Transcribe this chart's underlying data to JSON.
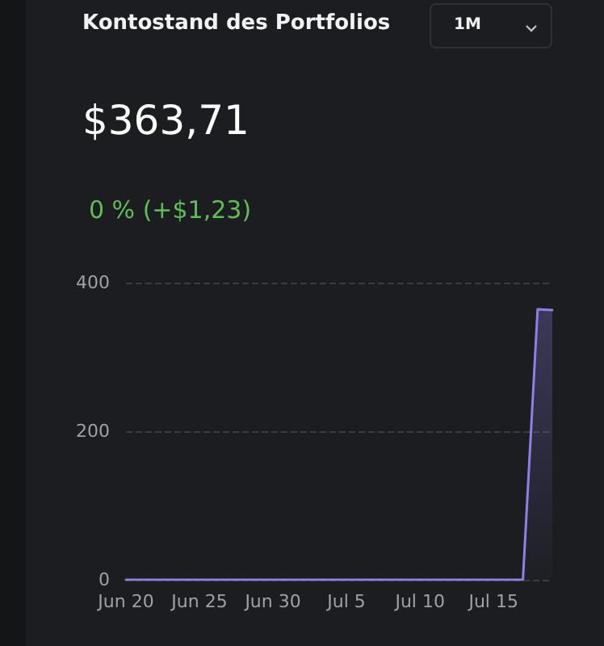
{
  "chart_data": {
    "type": "area",
    "title": "Kontostand des Portfolios",
    "subtitle": "$363,71",
    "annotations": [
      "0 % (+$1,23)",
      "1M"
    ],
    "x": [
      "--06-20",
      "--07-17",
      "--07-18",
      "--07-19"
    ],
    "series": [
      {
        "color": "#8e80e8",
        "values": [
          0,
          0,
          364,
          363
        ]
      }
    ],
    "xlim": [
      "--06-20",
      "--07-19"
    ],
    "xticks": [
      {
        "value": "--06-20",
        "label": "Jun 20"
      },
      {
        "value": "--06-25",
        "label": "Jun 25"
      },
      {
        "value": "--06-30",
        "label": "Jun 30"
      },
      {
        "value": "--07-05",
        "label": "Jul 5"
      },
      {
        "value": "--07-10",
        "label": "Jul 10"
      },
      {
        "value": "--07-15",
        "label": "Jul 15"
      }
    ],
    "ylim": [
      0,
      400
    ],
    "yticks": [
      0,
      200,
      400
    ],
    "grid": "y",
    "marker": "none",
    "line_style": "solid"
  }
}
